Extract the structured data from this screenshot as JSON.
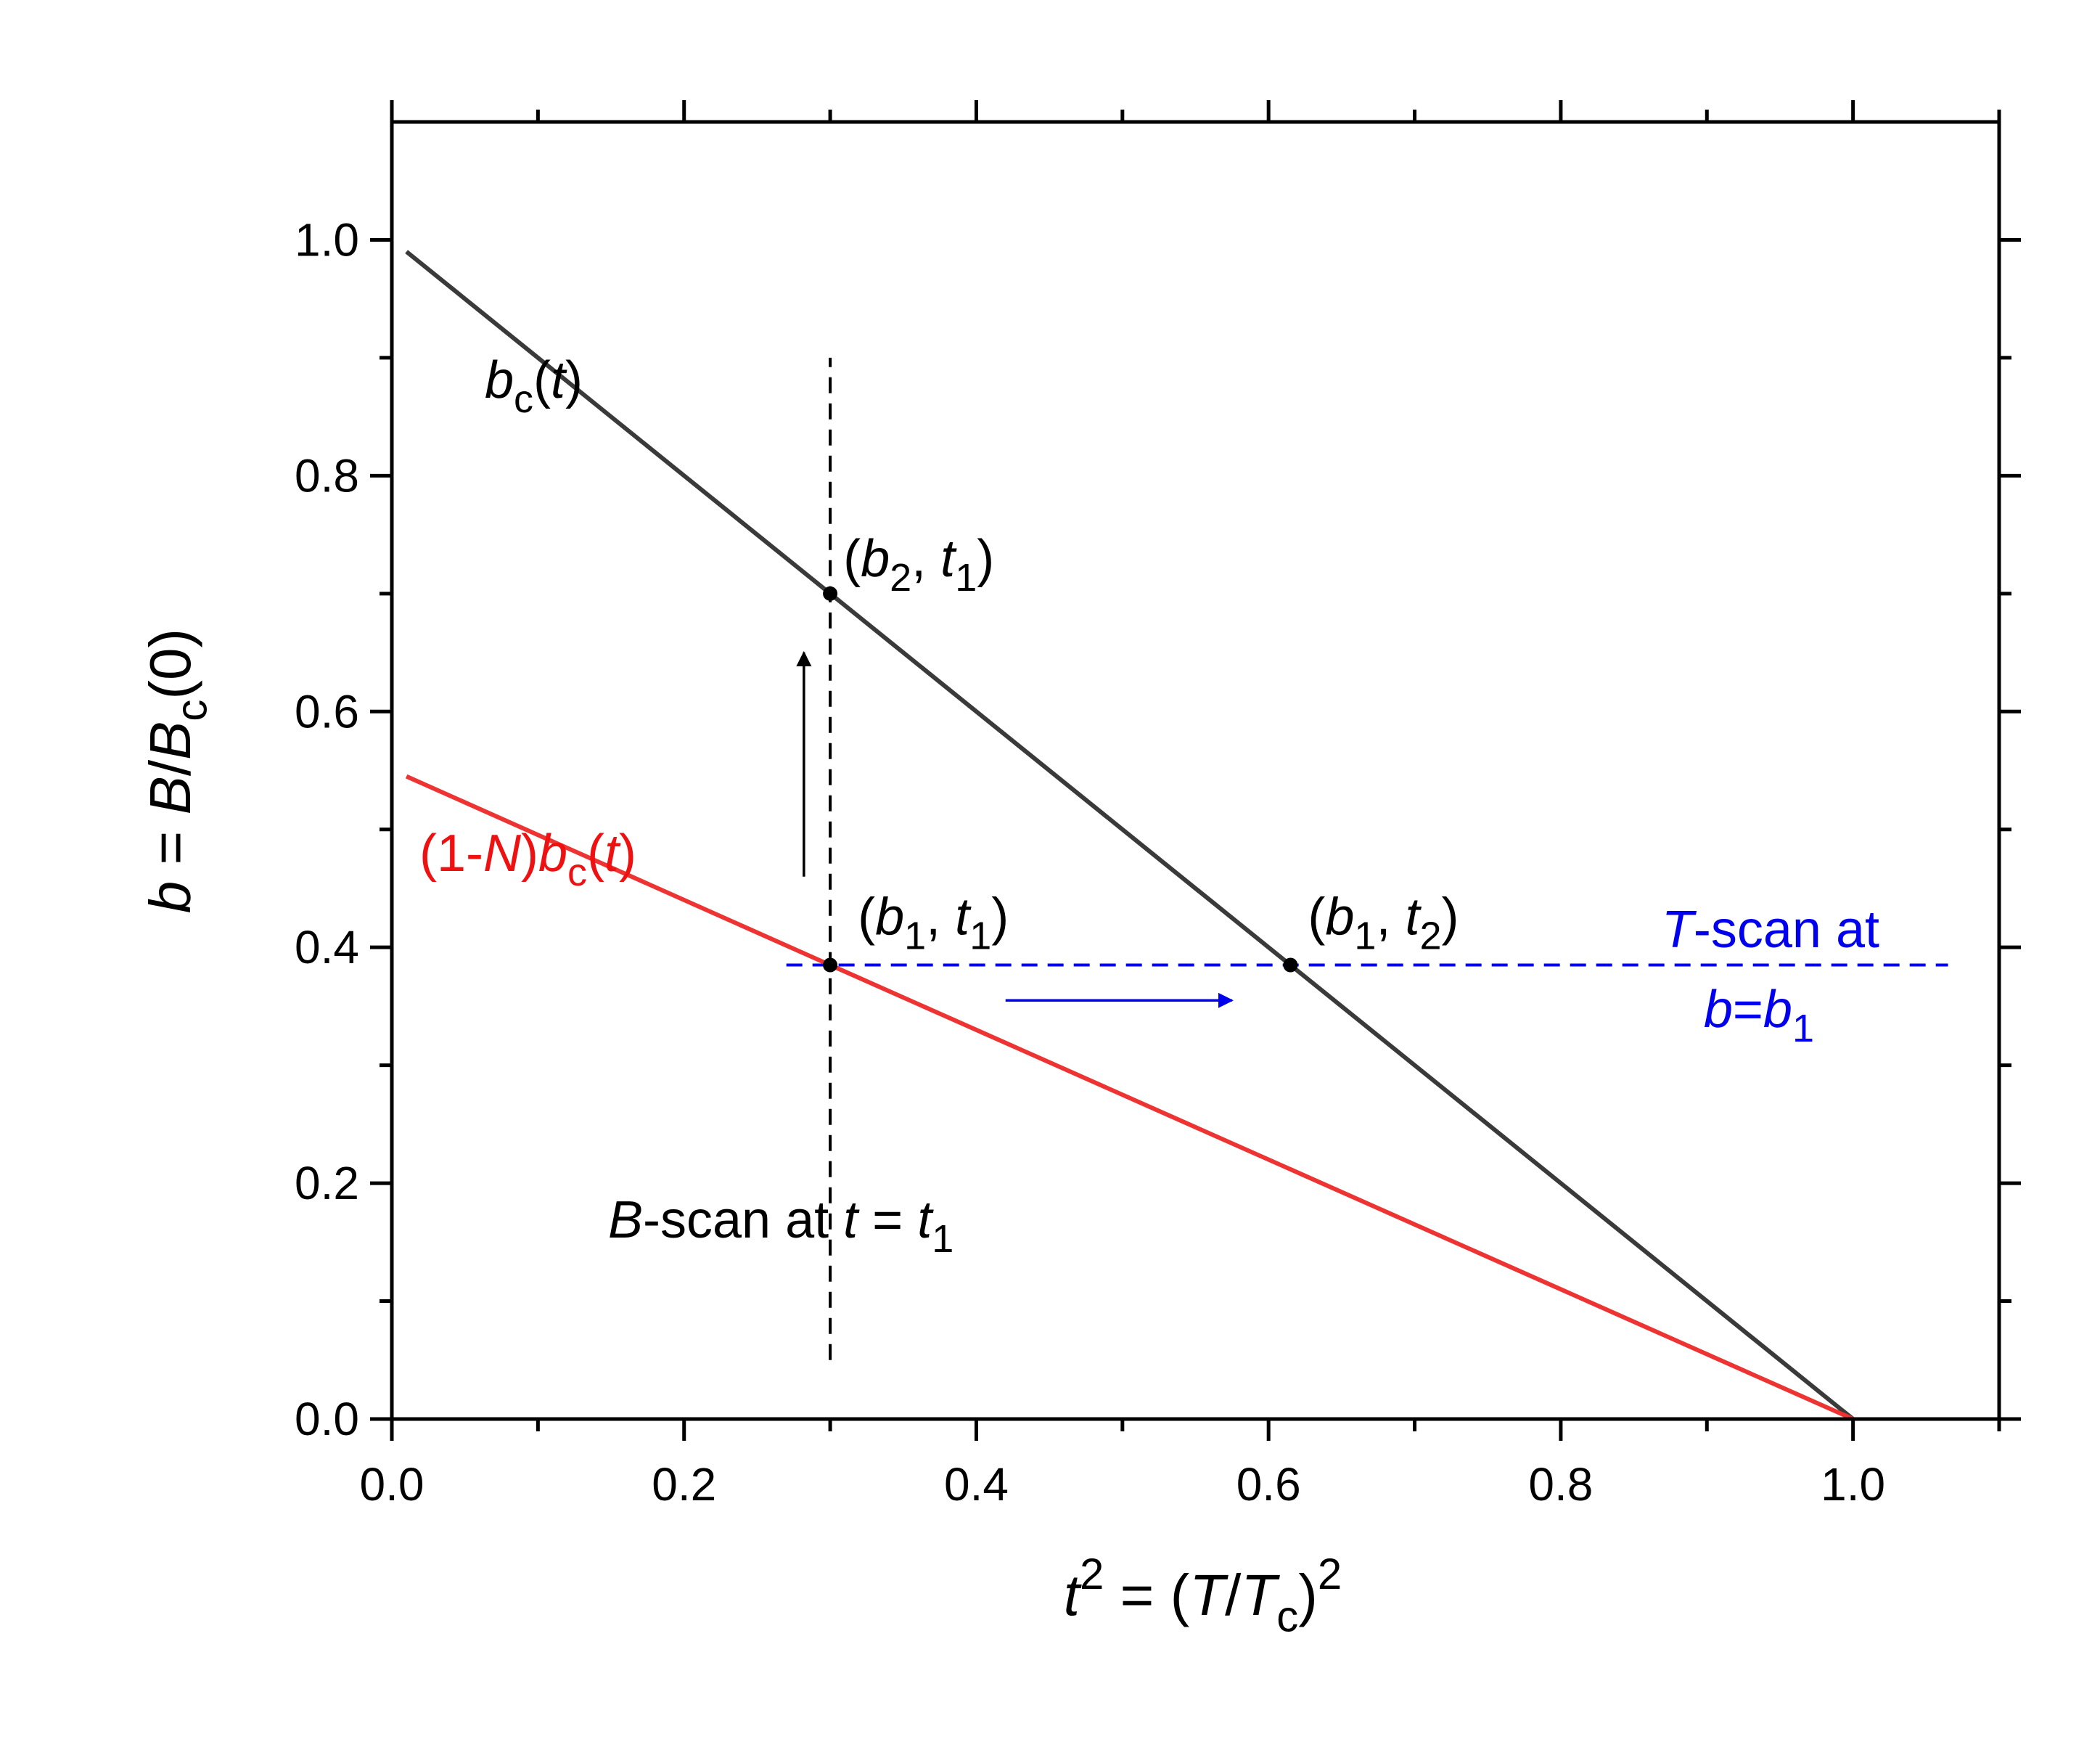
{
  "chart_data": {
    "type": "line",
    "x_axis": {
      "label_parts": [
        {
          "text": "t",
          "style": "italic"
        },
        {
          "text": "2",
          "style": "sup"
        },
        {
          "text": " = (",
          "style": "normal"
        },
        {
          "text": "T",
          "style": "italic"
        },
        {
          "text": "/",
          "style": "normal"
        },
        {
          "text": "T",
          "style": "italic"
        },
        {
          "text": "c",
          "style": "sub"
        },
        {
          "text": ")",
          "style": "normal"
        },
        {
          "text": "2",
          "style": "sup"
        }
      ],
      "range": [
        0.0,
        1.1
      ],
      "major_ticks": [
        0.0,
        0.2,
        0.4,
        0.6,
        0.8,
        1.0
      ],
      "minor_ticks": [
        0.1,
        0.3,
        0.5,
        0.7,
        0.9,
        1.1
      ],
      "tick_labels": [
        "0.0",
        "0.2",
        "0.4",
        "0.6",
        "0.8",
        "1.0"
      ]
    },
    "y_axis": {
      "label_parts": [
        {
          "text": "b",
          "style": "italic"
        },
        {
          "text": " = ",
          "style": "normal"
        },
        {
          "text": "B",
          "style": "italic"
        },
        {
          "text": "/",
          "style": "normal"
        },
        {
          "text": "B",
          "style": "italic"
        },
        {
          "text": "c",
          "style": "sub"
        },
        {
          "text": "(0)",
          "style": "normal"
        }
      ],
      "range": [
        0.0,
        1.1
      ],
      "major_ticks": [
        0.0,
        0.2,
        0.4,
        0.6,
        0.8,
        1.0
      ],
      "minor_ticks": [
        0.1,
        0.3,
        0.5,
        0.7,
        0.9
      ],
      "tick_labels": [
        "0.0",
        "0.2",
        "0.4",
        "0.6",
        "0.8",
        "1.0"
      ]
    },
    "grid": false,
    "series": [
      {
        "name": "bc(t)",
        "color": "#3a3a3a",
        "x": [
          0.01,
          0.3,
          0.615,
          1.0
        ],
        "y": [
          0.99,
          0.7,
          0.385,
          0.0
        ]
      },
      {
        "name": "(1-N)bc(t)",
        "color": "#ee3333",
        "x": [
          0.01,
          0.3,
          1.0
        ],
        "y": [
          0.545,
          0.385,
          0.0
        ]
      }
    ],
    "reference_lines": [
      {
        "orientation": "vertical",
        "x": 0.3,
        "y_range": [
          0.05,
          0.9
        ],
        "color": "#000000",
        "dash": true
      },
      {
        "orientation": "horizontal",
        "y": 0.385,
        "x_range": [
          0.27,
          1.065
        ],
        "color": "#0000ee",
        "dash": true
      }
    ],
    "arrows": [
      {
        "from": [
          0.282,
          0.46
        ],
        "to": [
          0.282,
          0.65
        ],
        "color": "#000000"
      },
      {
        "from": [
          0.42,
          0.355
        ],
        "to": [
          0.575,
          0.355
        ],
        "color": "#0000ee"
      }
    ],
    "points": [
      {
        "x": 0.3,
        "y": 0.7,
        "label_parts": [
          {
            "text": "(",
            "style": "normal"
          },
          {
            "text": "b",
            "style": "italic"
          },
          {
            "text": "2",
            "style": "sub"
          },
          {
            "text": ", ",
            "style": "normal"
          },
          {
            "text": "t",
            "style": "italic"
          },
          {
            "text": "1",
            "style": "sub"
          },
          {
            "text": ")",
            "style": "normal"
          }
        ]
      },
      {
        "x": 0.3,
        "y": 0.385,
        "label_parts": [
          {
            "text": "(",
            "style": "normal"
          },
          {
            "text": "b",
            "style": "italic"
          },
          {
            "text": "1",
            "style": "sub"
          },
          {
            "text": ", ",
            "style": "normal"
          },
          {
            "text": "t",
            "style": "italic"
          },
          {
            "text": "1",
            "style": "sub"
          },
          {
            "text": ")",
            "style": "normal"
          }
        ]
      },
      {
        "x": 0.615,
        "y": 0.385,
        "label_parts": [
          {
            "text": "(",
            "style": "normal"
          },
          {
            "text": "b",
            "style": "italic"
          },
          {
            "text": "1",
            "style": "sub"
          },
          {
            "text": ", ",
            "style": "normal"
          },
          {
            "text": "t",
            "style": "italic"
          },
          {
            "text": "2",
            "style": "sub"
          },
          {
            "text": ")",
            "style": "normal"
          }
        ]
      }
    ],
    "annotations": [
      {
        "id": "bc-label",
        "color": "#000000",
        "parts": [
          {
            "text": "b",
            "style": "italic"
          },
          {
            "text": "c",
            "style": "sub"
          },
          {
            "text": "(",
            "style": "normal"
          },
          {
            "text": "t",
            "style": "italic"
          },
          {
            "text": ")",
            "style": "normal"
          }
        ]
      },
      {
        "id": "n-label",
        "color": "#ee1111",
        "parts": [
          {
            "text": "(1-",
            "style": "normal"
          },
          {
            "text": "N",
            "style": "italic"
          },
          {
            "text": ")",
            "style": "normal"
          },
          {
            "text": "b",
            "style": "italic"
          },
          {
            "text": "c",
            "style": "sub"
          },
          {
            "text": "(",
            "style": "normal"
          },
          {
            "text": "t",
            "style": "italic"
          },
          {
            "text": ")",
            "style": "normal"
          }
        ]
      },
      {
        "id": "tscan-line1",
        "color": "#0000ee",
        "parts": [
          {
            "text": "T",
            "style": "italic"
          },
          {
            "text": "-scan at",
            "style": "normal"
          }
        ]
      },
      {
        "id": "tscan-line2",
        "color": "#0000ee",
        "parts": [
          {
            "text": "b",
            "style": "italic"
          },
          {
            "text": "=",
            "style": "normal"
          },
          {
            "text": "b",
            "style": "italic"
          },
          {
            "text": "1",
            "style": "sub"
          }
        ]
      },
      {
        "id": "bscan-label",
        "color": "#000000",
        "parts": [
          {
            "text": "B",
            "style": "italic"
          },
          {
            "text": "-scan at ",
            "style": "normal"
          },
          {
            "text": "t",
            "style": "italic"
          },
          {
            "text": " = ",
            "style": "normal"
          },
          {
            "text": "t",
            "style": "italic"
          },
          {
            "text": "1",
            "style": "sub"
          }
        ]
      }
    ]
  }
}
